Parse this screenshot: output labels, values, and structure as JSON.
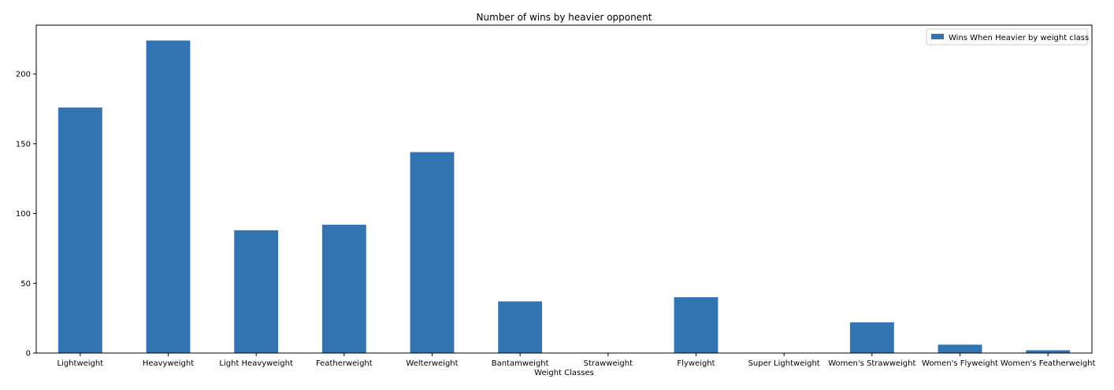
{
  "chart_data": {
    "type": "bar",
    "title": "Number of wins by heavier opponent",
    "xlabel": "Weight Classes",
    "ylabel": "",
    "categories": [
      "Lightweight",
      "Heavyweight",
      "Light Heavyweight",
      "Featherweight",
      "Welterweight",
      "Bantamweight",
      "Strawweight",
      "Flyweight",
      "Super Lightweight",
      "Women's Strawweight",
      "Women's Flyweight",
      "Women's Featherweight"
    ],
    "series": [
      {
        "name": "Wins When Heavier by weight class",
        "values": [
          176,
          224,
          88,
          92,
          144,
          37,
          0,
          40,
          0,
          22,
          6,
          2
        ],
        "color": "#3274b1"
      }
    ],
    "ylim": [
      0,
      235
    ],
    "yticks": [
      0,
      50,
      100,
      150,
      200
    ],
    "grid": false,
    "legend_position": "top-right"
  }
}
